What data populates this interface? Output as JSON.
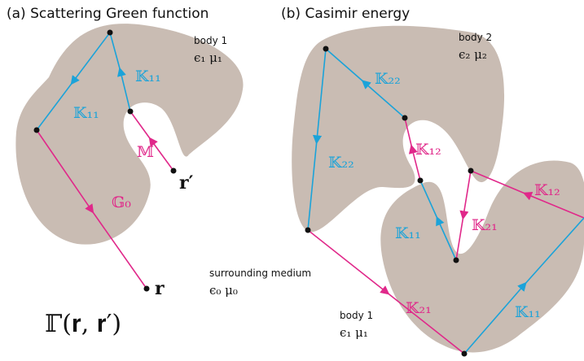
{
  "panel_a": {
    "title": "(a)  Scattering Green function",
    "body_name": "body 1",
    "body_material": "ϵ₁ μ₁",
    "labels": [
      "𝕂₁₁",
      "𝕂₁₁",
      "𝕄",
      "𝐫′",
      "𝔾₀",
      "𝐫"
    ],
    "formula": "ℾ(𝐫, 𝐫′)"
  },
  "panel_b": {
    "title": "(b)  Casimir energy",
    "body2_name": "body 2",
    "body2_material": "ϵ₂ μ₂",
    "medium_name": "surrounding medium",
    "medium_material": "ϵ₀ μ₀",
    "body1_name": "body 1",
    "body1_material": "ϵ₁ μ₁",
    "labels": [
      "𝕂₂₂",
      "𝕂₂₂",
      "𝕂₁₂",
      "𝕂₁₂",
      "𝕂₁₁",
      "𝕂₂₁",
      "𝕂₂₁",
      "𝕂₁₁"
    ]
  }
}
